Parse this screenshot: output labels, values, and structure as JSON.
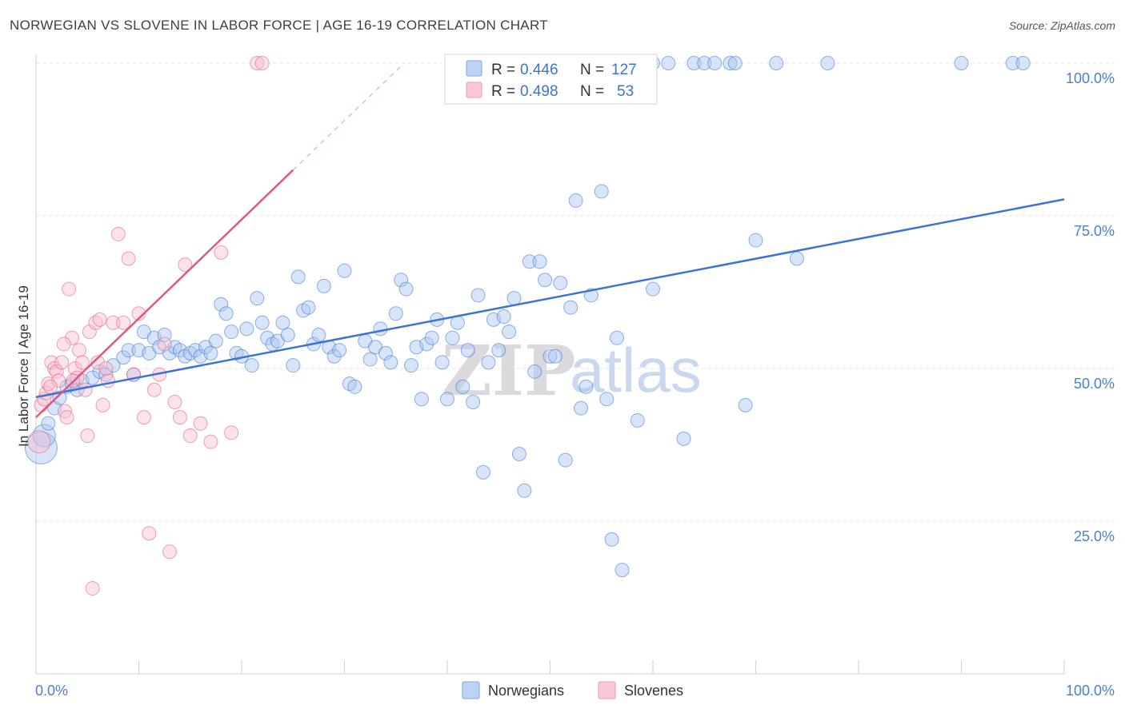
{
  "header": {
    "title": "NORWEGIAN VS SLOVENE IN LABOR FORCE | AGE 16-19 CORRELATION CHART",
    "source": "Source: ZipAtlas.com"
  },
  "watermark": {
    "zip": "ZIP",
    "atlas": "atlas"
  },
  "legend": {
    "rows": [
      {
        "r_label": "R =",
        "r_value": "0.446",
        "n_label": "N =",
        "n_value": "127",
        "color": "#9ec0f0"
      },
      {
        "r_label": "R =",
        "r_value": "0.498",
        "n_label": "N =",
        "n_value": "53",
        "color": "#f5aec4"
      }
    ]
  },
  "bottom_legend": [
    {
      "label": "Norwegians",
      "color": "#9ec0f0"
    },
    {
      "label": "Slovenes",
      "color": "#f5aec4"
    }
  ],
  "chart_data": {
    "type": "scatter",
    "title": "NORWEGIAN VS SLOVENE IN LABOR FORCE | AGE 16-19 CORRELATION CHART",
    "xlabel": "",
    "ylabel": "In Labor Force | Age 16-19",
    "xlim": [
      0,
      100
    ],
    "ylim": [
      0,
      100
    ],
    "x_tick_labels": [
      "0.0%",
      "100.0%"
    ],
    "y_tick_labels": [
      "100.0%",
      "75.0%",
      "50.0%",
      "25.0%"
    ],
    "y_tick_values": [
      100,
      75,
      50,
      25
    ],
    "grid": true,
    "series": [
      {
        "name": "Norwegians",
        "color": "#3b73d6",
        "fill": "#a9c6f0",
        "trend": {
          "x": [
            0,
            100
          ],
          "y": [
            45.3,
            77.7
          ]
        },
        "points": [
          [
            0.5,
            37,
            3
          ],
          [
            0.8,
            39,
            2
          ],
          [
            1.2,
            41,
            1
          ],
          [
            1.8,
            43.5,
            1
          ],
          [
            2.3,
            45.2,
            1
          ],
          [
            3,
            47,
            1
          ],
          [
            3.5,
            47.5,
            1
          ],
          [
            4,
            46.5,
            1
          ],
          [
            4.5,
            48,
            1
          ],
          [
            5.5,
            48.5,
            1
          ],
          [
            6.2,
            49.5,
            1
          ],
          [
            6.8,
            49,
            1
          ],
          [
            7.5,
            50.5,
            1
          ],
          [
            8.5,
            51.8,
            1
          ],
          [
            9,
            53,
            1
          ],
          [
            9.5,
            49,
            1
          ],
          [
            10,
            53,
            1
          ],
          [
            10.5,
            56,
            1
          ],
          [
            11,
            52.5,
            1
          ],
          [
            11.5,
            55,
            1
          ],
          [
            12,
            53.5,
            1
          ],
          [
            12.5,
            55.5,
            1
          ],
          [
            13,
            52.5,
            1
          ],
          [
            13.5,
            53.5,
            1
          ],
          [
            14,
            53,
            1
          ],
          [
            14.5,
            52,
            1
          ],
          [
            15,
            52.5,
            1
          ],
          [
            15.5,
            53,
            1
          ],
          [
            16,
            52,
            1
          ],
          [
            16.5,
            53.5,
            1
          ],
          [
            17,
            52.5,
            1
          ],
          [
            17.5,
            54.5,
            1
          ],
          [
            18,
            60.5,
            1
          ],
          [
            18.5,
            59,
            1
          ],
          [
            19,
            56,
            1
          ],
          [
            19.5,
            52.5,
            1
          ],
          [
            20,
            52,
            1
          ],
          [
            20.5,
            56.5,
            1
          ],
          [
            21,
            50.5,
            1
          ],
          [
            21.5,
            61.5,
            1
          ],
          [
            22,
            57.5,
            1
          ],
          [
            22.5,
            55,
            1
          ],
          [
            23,
            54,
            1
          ],
          [
            23.5,
            54.5,
            1
          ],
          [
            24,
            57.5,
            1
          ],
          [
            24.5,
            55.5,
            1
          ],
          [
            25,
            50.5,
            1
          ],
          [
            25.5,
            65,
            1
          ],
          [
            26,
            59.5,
            1
          ],
          [
            26.5,
            60,
            1
          ],
          [
            27,
            54,
            1
          ],
          [
            27.5,
            55.5,
            1
          ],
          [
            28,
            63.5,
            1
          ],
          [
            28.5,
            53.5,
            1
          ],
          [
            29,
            52,
            1
          ],
          [
            29.5,
            53,
            1
          ],
          [
            30,
            66,
            1
          ],
          [
            30.5,
            47.5,
            1
          ],
          [
            31,
            47,
            1
          ],
          [
            32,
            54.5,
            1
          ],
          [
            32.5,
            51.5,
            1
          ],
          [
            33,
            53.5,
            1
          ],
          [
            33.5,
            56.5,
            1
          ],
          [
            34,
            52.5,
            1
          ],
          [
            34.5,
            51,
            1
          ],
          [
            35,
            59,
            1
          ],
          [
            35.5,
            64.5,
            1
          ],
          [
            36,
            63,
            1
          ],
          [
            36.5,
            50.5,
            1
          ],
          [
            37,
            53.5,
            1
          ],
          [
            37.5,
            45,
            1
          ],
          [
            38,
            54,
            1
          ],
          [
            38.5,
            55,
            1
          ],
          [
            39,
            58,
            1
          ],
          [
            39.5,
            51,
            1
          ],
          [
            40,
            45,
            1
          ],
          [
            40.5,
            55,
            1
          ],
          [
            41,
            57.5,
            1
          ],
          [
            41.5,
            47,
            1
          ],
          [
            42,
            53,
            1
          ],
          [
            42.5,
            44.5,
            1
          ],
          [
            43,
            62,
            1
          ],
          [
            43.5,
            33,
            1
          ],
          [
            44,
            51,
            1
          ],
          [
            44.5,
            58,
            1
          ],
          [
            45,
            53,
            1
          ],
          [
            45.5,
            58.5,
            1
          ],
          [
            46,
            56,
            1
          ],
          [
            46.5,
            61.5,
            1
          ],
          [
            47,
            36,
            1
          ],
          [
            47.5,
            30,
            1
          ],
          [
            48,
            67.5,
            1
          ],
          [
            48.5,
            49.5,
            1
          ],
          [
            49,
            67.5,
            1
          ],
          [
            49.5,
            64.5,
            1
          ],
          [
            50,
            52,
            1
          ],
          [
            50.5,
            52,
            1
          ],
          [
            51,
            64,
            1
          ],
          [
            51.5,
            35,
            1
          ],
          [
            52,
            60,
            1
          ],
          [
            52.5,
            77.5,
            1
          ],
          [
            53,
            43.5,
            1
          ],
          [
            53.5,
            47,
            1
          ],
          [
            54,
            62,
            1
          ],
          [
            55,
            79,
            1
          ],
          [
            55.5,
            45,
            1
          ],
          [
            56,
            22,
            1
          ],
          [
            56.5,
            55,
            1
          ],
          [
            57,
            17,
            1
          ],
          [
            58.5,
            41.5,
            1
          ],
          [
            60,
            63,
            1
          ],
          [
            63,
            38.5,
            1
          ],
          [
            64,
            100,
            1
          ],
          [
            65,
            100,
            1
          ],
          [
            66,
            100,
            1
          ],
          [
            67.5,
            100,
            1
          ],
          [
            68,
            100,
            1
          ],
          [
            69,
            44,
            1
          ],
          [
            70,
            71,
            1
          ],
          [
            72,
            100,
            1
          ],
          [
            77,
            100,
            1
          ],
          [
            90,
            100,
            1
          ],
          [
            95,
            100,
            1
          ],
          [
            96,
            100,
            1
          ],
          [
            60,
            100,
            1
          ],
          [
            61.5,
            100,
            1
          ],
          [
            74,
            68,
            1
          ]
        ]
      },
      {
        "name": "Slovenes",
        "color": "#e0577f",
        "fill": "#f8bfd0",
        "trend": {
          "x": [
            0,
            25
          ],
          "y": [
            42,
            82.5
          ]
        },
        "points": [
          [
            0.3,
            38,
            2
          ],
          [
            0.5,
            44,
            1
          ],
          [
            0.8,
            45,
            1
          ],
          [
            1,
            46,
            1
          ],
          [
            1.2,
            47.5,
            1
          ],
          [
            1.5,
            51,
            1
          ],
          [
            1.8,
            50,
            1
          ],
          [
            2,
            49.5,
            1
          ],
          [
            2.2,
            48,
            1
          ],
          [
            2.5,
            51,
            1
          ],
          [
            2.8,
            43,
            1
          ],
          [
            3,
            42,
            1
          ],
          [
            3.2,
            63,
            1
          ],
          [
            3.5,
            55,
            1
          ],
          [
            3.8,
            50,
            1
          ],
          [
            4,
            48.5,
            1
          ],
          [
            4.2,
            53,
            1
          ],
          [
            4.5,
            51,
            1
          ],
          [
            4.8,
            46.5,
            1
          ],
          [
            5,
            39,
            1
          ],
          [
            5.2,
            56,
            1
          ],
          [
            5.5,
            14,
            1
          ],
          [
            5.8,
            57.5,
            1
          ],
          [
            6,
            51,
            1
          ],
          [
            6.2,
            58,
            1
          ],
          [
            6.5,
            44,
            1
          ],
          [
            7,
            48,
            1
          ],
          [
            7.5,
            57.5,
            1
          ],
          [
            8,
            72,
            1
          ],
          [
            8.5,
            57.5,
            1
          ],
          [
            9,
            68,
            1
          ],
          [
            9.5,
            49,
            1
          ],
          [
            10,
            59,
            1
          ],
          [
            10.5,
            42,
            1
          ],
          [
            11,
            23,
            1
          ],
          [
            11.5,
            46.5,
            1
          ],
          [
            12,
            49,
            1
          ],
          [
            12.5,
            54,
            1
          ],
          [
            13,
            20,
            1
          ],
          [
            13.5,
            44.5,
            1
          ],
          [
            14,
            42,
            1
          ],
          [
            14.5,
            67,
            1
          ],
          [
            15,
            39,
            1
          ],
          [
            16,
            41,
            1
          ],
          [
            17,
            38,
            1
          ],
          [
            18,
            69,
            1
          ],
          [
            19,
            39.5,
            1
          ],
          [
            21.5,
            100,
            1
          ],
          [
            22,
            100,
            1
          ],
          [
            2.7,
            54,
            1
          ],
          [
            1.4,
            47,
            1
          ],
          [
            3.6,
            48,
            1
          ],
          [
            6.8,
            50,
            1
          ]
        ]
      }
    ]
  }
}
